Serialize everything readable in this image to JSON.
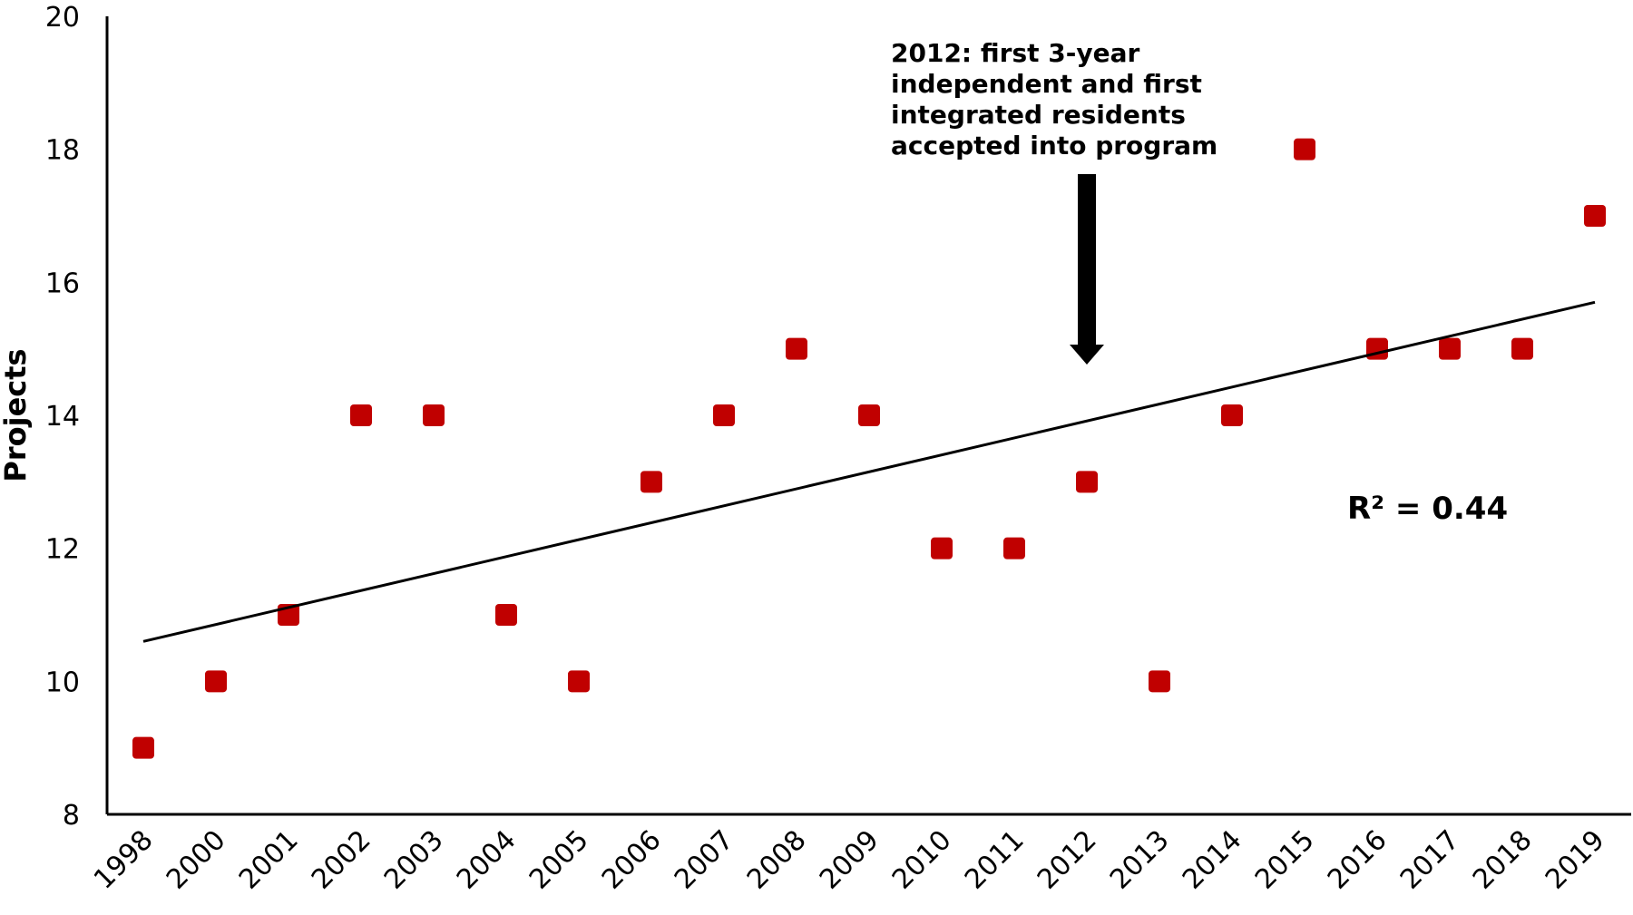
{
  "chart_data": {
    "type": "scatter",
    "ylabel": "Projects",
    "xlabel": "",
    "ylim": [
      8,
      20
    ],
    "yticks": [
      8,
      10,
      12,
      14,
      16,
      18,
      20
    ],
    "categories": [
      "1998",
      "2000",
      "2001",
      "2002",
      "2003",
      "2004",
      "2005",
      "2006",
      "2007",
      "2008",
      "2009",
      "2010",
      "2011",
      "2012",
      "2013",
      "2014",
      "2015",
      "2016",
      "2017",
      "2018",
      "2019"
    ],
    "series": [
      {
        "values": [
          9,
          10,
          11,
          14,
          14,
          11,
          10,
          13,
          14,
          15,
          14,
          12,
          12,
          13,
          10,
          14,
          18,
          15,
          15,
          15,
          17
        ],
        "color": "#c00000",
        "marker": "square"
      }
    ],
    "trendline": {
      "type": "linear",
      "start": 10.6,
      "end": 15.7,
      "r2_label": "R² = 0.44"
    },
    "annotation": {
      "lines": [
        "2012: first 3-year",
        "independent and first",
        "integrated residents",
        "accepted into program"
      ],
      "target_category": "2012"
    },
    "grid": false,
    "legend": "none"
  }
}
